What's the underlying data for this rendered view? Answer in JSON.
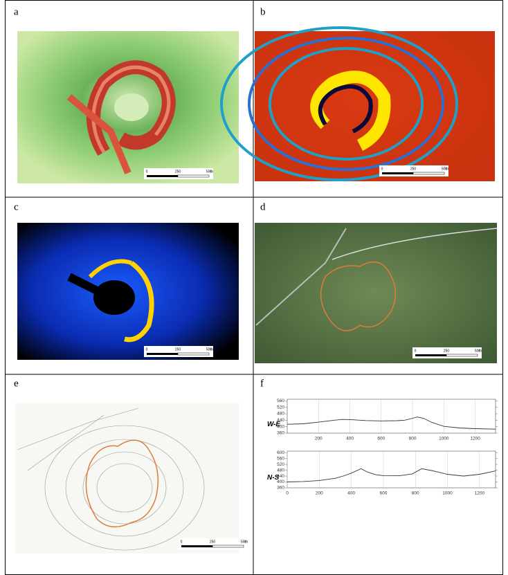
{
  "panels": [
    {
      "label": "a"
    },
    {
      "label": "b"
    },
    {
      "label": "c"
    },
    {
      "label": "d"
    },
    {
      "label": "e"
    },
    {
      "label": "f"
    }
  ],
  "scale_labels": [
    "0",
    "250",
    "500",
    "m"
  ],
  "chart_data": [
    {
      "type": "line",
      "label": "W-E",
      "color": "#333333",
      "x": [
        0,
        100,
        200,
        300,
        350,
        400,
        500,
        600,
        700,
        750,
        800,
        830,
        870,
        920,
        1000,
        1100,
        1200,
        1330
      ],
      "values": [
        415,
        418,
        428,
        440,
        445,
        444,
        438,
        436,
        437,
        440,
        452,
        460,
        452,
        428,
        402,
        392,
        388,
        385
      ],
      "xlim": [
        0,
        1330
      ],
      "ylim": [
        360,
        570
      ],
      "xticks": [
        200,
        400,
        600,
        800,
        1000,
        1200
      ],
      "yticks": [
        360,
        400,
        440,
        480,
        520,
        560
      ]
    },
    {
      "type": "line",
      "label": "N-S",
      "color": "#333333",
      "x": [
        0,
        100,
        200,
        300,
        350,
        400,
        460,
        500,
        550,
        600,
        700,
        780,
        840,
        900,
        950,
        1000,
        1100,
        1200,
        1300
      ],
      "values": [
        400,
        403,
        410,
        425,
        440,
        460,
        490,
        468,
        450,
        443,
        442,
        455,
        490,
        478,
        465,
        452,
        440,
        452,
        475
      ],
      "xlim": [
        0,
        1300
      ],
      "ylim": [
        360,
        610
      ],
      "xticks": [
        0,
        200,
        400,
        600,
        800,
        1000,
        1200
      ],
      "yticks": [
        360,
        400,
        440,
        480,
        520,
        560,
        600
      ]
    }
  ]
}
